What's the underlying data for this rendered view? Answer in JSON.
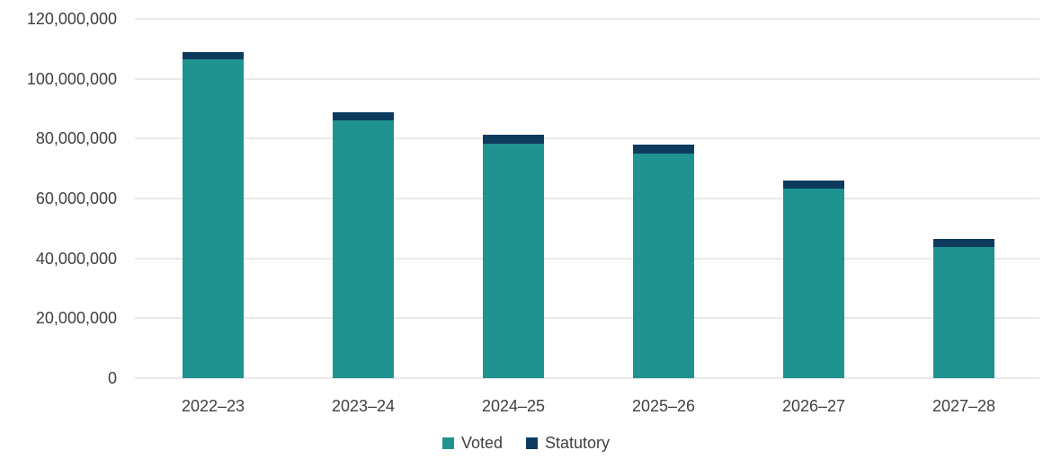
{
  "chart_data": {
    "type": "bar",
    "stacked": true,
    "title": "",
    "xlabel": "",
    "ylabel": "",
    "categories": [
      "2022–23",
      "2023–24",
      "2024–25",
      "2025–26",
      "2026–27",
      "2027–28"
    ],
    "series": [
      {
        "name": "Voted",
        "color": "#1f9390",
        "values": [
          106600000,
          86000000,
          78200000,
          74900000,
          63200000,
          43700000
        ]
      },
      {
        "name": "Statutory",
        "color": "#0d3b5d",
        "values": [
          2300000,
          2700000,
          3000000,
          3000000,
          2900000,
          2800000
        ]
      }
    ],
    "totals_approx": [
      108900000,
      88700000,
      81200000,
      77900000,
      66100000,
      46500000
    ],
    "ylim": [
      0,
      120000000
    ],
    "ytick_interval": 20000000,
    "ytick_labels": [
      "0",
      "20,000,000",
      "40,000,000",
      "60,000,000",
      "80,000,000",
      "100,000,000",
      "120,000,000"
    ],
    "grid": true,
    "gridline_color": "#e9e9e9",
    "text_color": "#404040",
    "background_color": "#ffffff",
    "legend_position": "bottom"
  }
}
